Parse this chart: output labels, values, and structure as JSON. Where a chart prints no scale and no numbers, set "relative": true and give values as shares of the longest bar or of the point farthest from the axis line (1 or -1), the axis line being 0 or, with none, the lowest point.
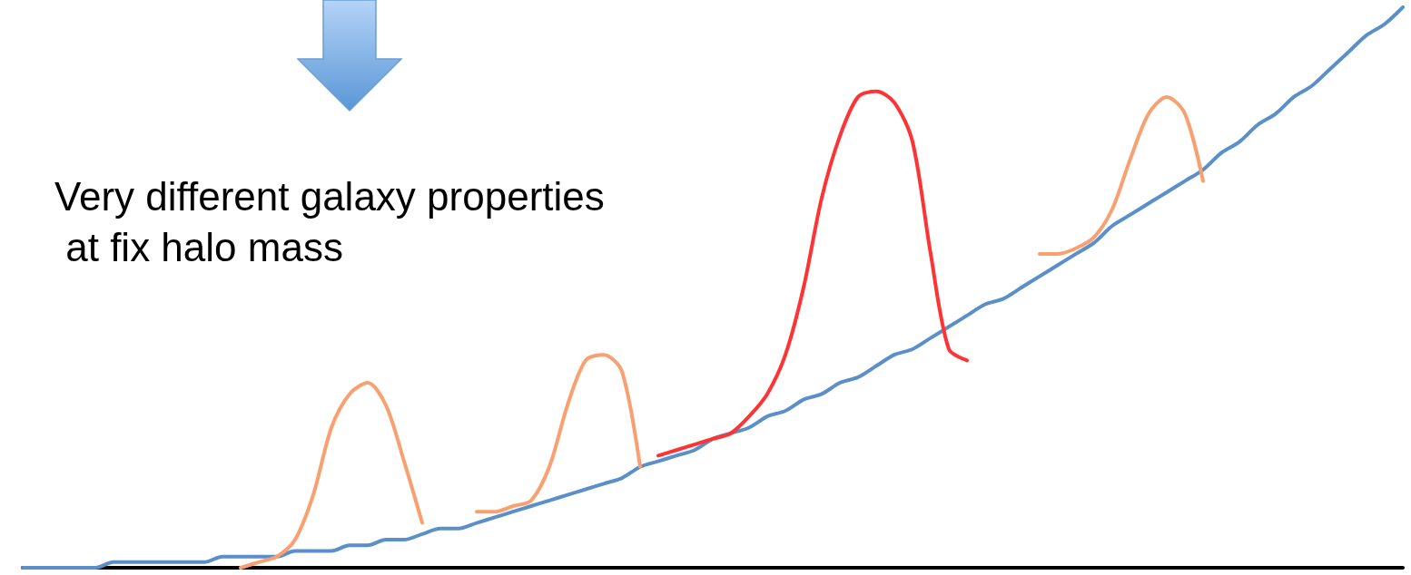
{
  "chart_data": {
    "type": "line",
    "relative": true,
    "grid": false,
    "marker": "none",
    "line_style": "solid",
    "annotations": [
      "Very different galaxy properties at fix halo mass"
    ],
    "categories": [
      null,
      null,
      null,
      null,
      null,
      null,
      null,
      null,
      null,
      null,
      null,
      null,
      null,
      null,
      null,
      null,
      null,
      null,
      null,
      null,
      null,
      null,
      null,
      null,
      null,
      null,
      null,
      null,
      null,
      null,
      null,
      null,
      null,
      null,
      null,
      null,
      null,
      null,
      null,
      null,
      null,
      null,
      null,
      null,
      null,
      null,
      null,
      null,
      null,
      null,
      null,
      null,
      null,
      null,
      null,
      null,
      null,
      null,
      null,
      null,
      null,
      null,
      null,
      null,
      null,
      null,
      null,
      null,
      null,
      null,
      null,
      null,
      null,
      null,
      null,
      null,
      null
    ],
    "series": [
      {
        "color": "#5b8fc9",
        "values": [
          0.0,
          0.0,
          0.0,
          0.0,
          0.0,
          0.01,
          0.01,
          0.01,
          0.01,
          0.01,
          0.01,
          0.02,
          0.02,
          0.02,
          0.02,
          0.03,
          0.03,
          0.03,
          0.04,
          0.04,
          0.05,
          0.05,
          0.06,
          0.07,
          0.07,
          0.08,
          0.09,
          0.1,
          0.11,
          0.12,
          0.13,
          0.14,
          0.15,
          0.16,
          0.18,
          0.19,
          0.2,
          0.21,
          0.23,
          0.24,
          0.25,
          0.27,
          0.28,
          0.3,
          0.31,
          0.33,
          0.34,
          0.36,
          0.38,
          0.39,
          0.41,
          0.43,
          0.45,
          0.47,
          0.48,
          0.5,
          0.52,
          0.54,
          0.56,
          0.58,
          0.61,
          0.63,
          0.65,
          0.67,
          0.69,
          0.71,
          0.74,
          0.76,
          0.79,
          0.81,
          0.84,
          0.86,
          0.89,
          0.92,
          0.95,
          0.97,
          1.0
        ]
      },
      {
        "color": "#f9a070",
        "values": [
          null,
          null,
          null,
          null,
          null,
          null,
          null,
          null,
          null,
          null,
          null,
          null,
          0.0,
          0.01,
          0.02,
          0.05,
          0.13,
          0.25,
          0.31,
          0.33,
          0.29,
          0.19,
          0.08,
          null,
          null,
          null,
          null,
          null,
          null,
          null,
          null,
          null,
          null,
          null,
          null,
          null,
          null,
          null,
          null,
          null,
          null,
          null,
          null,
          null,
          null,
          null,
          null,
          null,
          null,
          null,
          null,
          null,
          null,
          null,
          null,
          null,
          null,
          null,
          null,
          null,
          null,
          null,
          null,
          null,
          null,
          null,
          null,
          null,
          null,
          null,
          null,
          null,
          null,
          null,
          null,
          null,
          null
        ]
      },
      {
        "color": "#f9a070",
        "values": [
          null,
          null,
          null,
          null,
          null,
          null,
          null,
          null,
          null,
          null,
          null,
          null,
          null,
          null,
          null,
          null,
          null,
          null,
          null,
          null,
          null,
          null,
          null,
          null,
          null,
          0.1,
          0.1,
          0.11,
          0.12,
          0.18,
          0.29,
          0.37,
          0.38,
          0.35,
          0.18,
          null,
          null,
          null,
          null,
          null,
          null,
          null,
          null,
          null,
          null,
          null,
          null,
          null,
          null,
          null,
          null,
          null,
          null,
          null,
          null,
          null,
          null,
          null,
          null,
          null,
          null,
          null,
          null,
          null,
          null,
          null,
          null,
          null,
          null,
          null,
          null,
          null,
          null,
          null,
          null,
          null,
          null
        ]
      },
      {
        "color": "#ff3333",
        "values": [
          null,
          null,
          null,
          null,
          null,
          null,
          null,
          null,
          null,
          null,
          null,
          null,
          null,
          null,
          null,
          null,
          null,
          null,
          null,
          null,
          null,
          null,
          null,
          null,
          null,
          null,
          null,
          null,
          null,
          null,
          null,
          null,
          null,
          null,
          null,
          0.2,
          0.21,
          0.22,
          0.23,
          0.24,
          0.27,
          0.31,
          0.38,
          0.5,
          0.66,
          0.77,
          0.84,
          0.85,
          0.83,
          0.76,
          0.56,
          0.39,
          0.37,
          null,
          null,
          null,
          null,
          null,
          null,
          null,
          null,
          null,
          null,
          null,
          null,
          null,
          null,
          null,
          null,
          null,
          null,
          null,
          null,
          null,
          null,
          null,
          null
        ]
      },
      {
        "color": "#f9a070",
        "values": [
          null,
          null,
          null,
          null,
          null,
          null,
          null,
          null,
          null,
          null,
          null,
          null,
          null,
          null,
          null,
          null,
          null,
          null,
          null,
          null,
          null,
          null,
          null,
          null,
          null,
          null,
          null,
          null,
          null,
          null,
          null,
          null,
          null,
          null,
          null,
          null,
          null,
          null,
          null,
          null,
          null,
          null,
          null,
          null,
          null,
          null,
          null,
          null,
          null,
          null,
          null,
          null,
          null,
          null,
          null,
          null,
          0.56,
          0.56,
          0.57,
          0.59,
          0.64,
          0.73,
          0.81,
          0.84,
          0.81,
          0.69,
          null,
          null,
          null,
          null,
          null,
          null,
          null,
          null,
          null,
          null,
          null
        ]
      }
    ]
  }
}
